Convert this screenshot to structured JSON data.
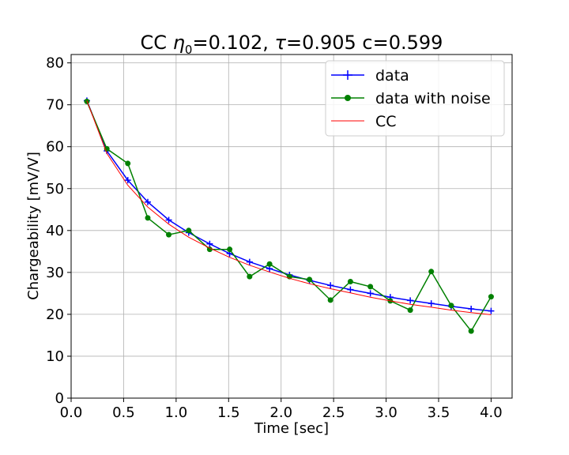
{
  "chart_data": {
    "type": "line",
    "title_prefix": "CC ",
    "title_eta": "η",
    "title_eta_sub": "0",
    "title_rest": "=0.102, ",
    "title_tau": "τ",
    "title_end": "=0.905 c=0.599",
    "xlabel": "Time [sec]",
    "ylabel": "Chargeability [mV/V]",
    "xlim": [
      0.0,
      4.2
    ],
    "ylim": [
      0,
      82
    ],
    "xticks": [
      0.0,
      0.5,
      1.0,
      1.5,
      2.0,
      2.5,
      3.0,
      3.5,
      4.0
    ],
    "xtick_labels": [
      "0.0",
      "0.5",
      "1.0",
      "1.5",
      "2.0",
      "2.5",
      "3.0",
      "3.5",
      "4.0"
    ],
    "yticks": [
      0,
      10,
      20,
      30,
      40,
      50,
      60,
      70,
      80
    ],
    "ytick_labels": [
      "0",
      "10",
      "20",
      "30",
      "40",
      "50",
      "60",
      "70",
      "80"
    ],
    "grid": true,
    "legend_position": "top-right",
    "x": [
      0.15,
      0.34,
      0.54,
      0.73,
      0.93,
      1.12,
      1.32,
      1.51,
      1.7,
      1.89,
      2.08,
      2.27,
      2.47,
      2.66,
      2.85,
      3.04,
      3.23,
      3.43,
      3.62,
      3.81,
      4.0
    ],
    "series": [
      {
        "name": "data",
        "color": "#0000ff",
        "marker": "plus",
        "values": [
          71.0,
          59.0,
          52.0,
          46.8,
          42.5,
          39.5,
          36.8,
          34.5,
          32.5,
          30.9,
          29.4,
          28.1,
          26.9,
          25.9,
          25.0,
          24.1,
          23.3,
          22.6,
          21.9,
          21.3,
          20.8
        ]
      },
      {
        "name": "data with noise",
        "color": "#008000",
        "marker": "circle",
        "values": [
          70.8,
          59.5,
          56.0,
          43.0,
          39.0,
          40.0,
          35.5,
          35.5,
          29.0,
          32.0,
          29.0,
          28.3,
          23.4,
          27.8,
          26.6,
          23.2,
          21.0,
          30.2,
          22.1,
          16.0,
          24.2
        ]
      },
      {
        "name": "CC",
        "color": "#ff0000",
        "marker": "none",
        "values": [
          71.0,
          58.4,
          50.8,
          45.6,
          41.5,
          38.4,
          35.8,
          33.6,
          31.7,
          30.1,
          28.6,
          27.3,
          26.1,
          25.1,
          24.1,
          23.2,
          22.4,
          21.7,
          21.0,
          20.4,
          19.9
        ]
      }
    ]
  }
}
